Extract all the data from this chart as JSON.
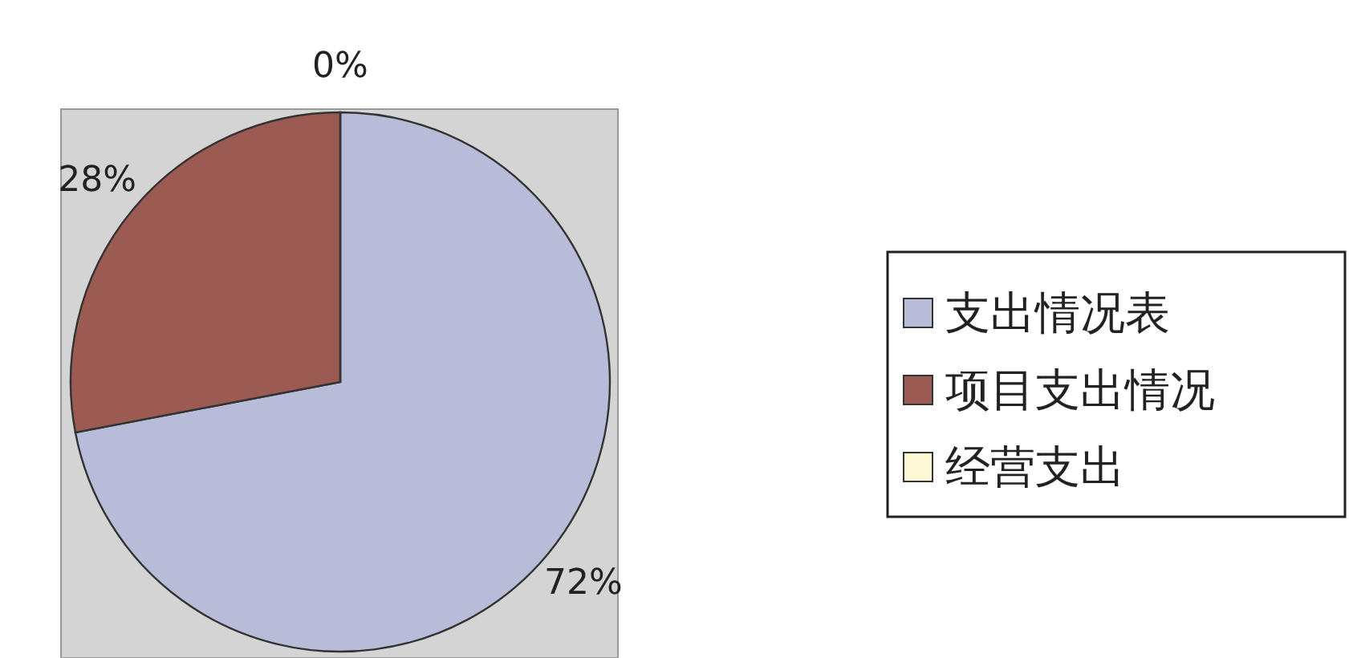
{
  "chart_data": {
    "type": "pie",
    "categories": [
      "支出情况表",
      "项目支出情况",
      "经营支出"
    ],
    "values": [
      72,
      28,
      0
    ],
    "colors": [
      "#b9bcd9",
      "#9c5b52",
      "#fdf9d6"
    ],
    "value_labels": [
      "72%",
      "28%",
      "0%"
    ],
    "legend": "right"
  }
}
